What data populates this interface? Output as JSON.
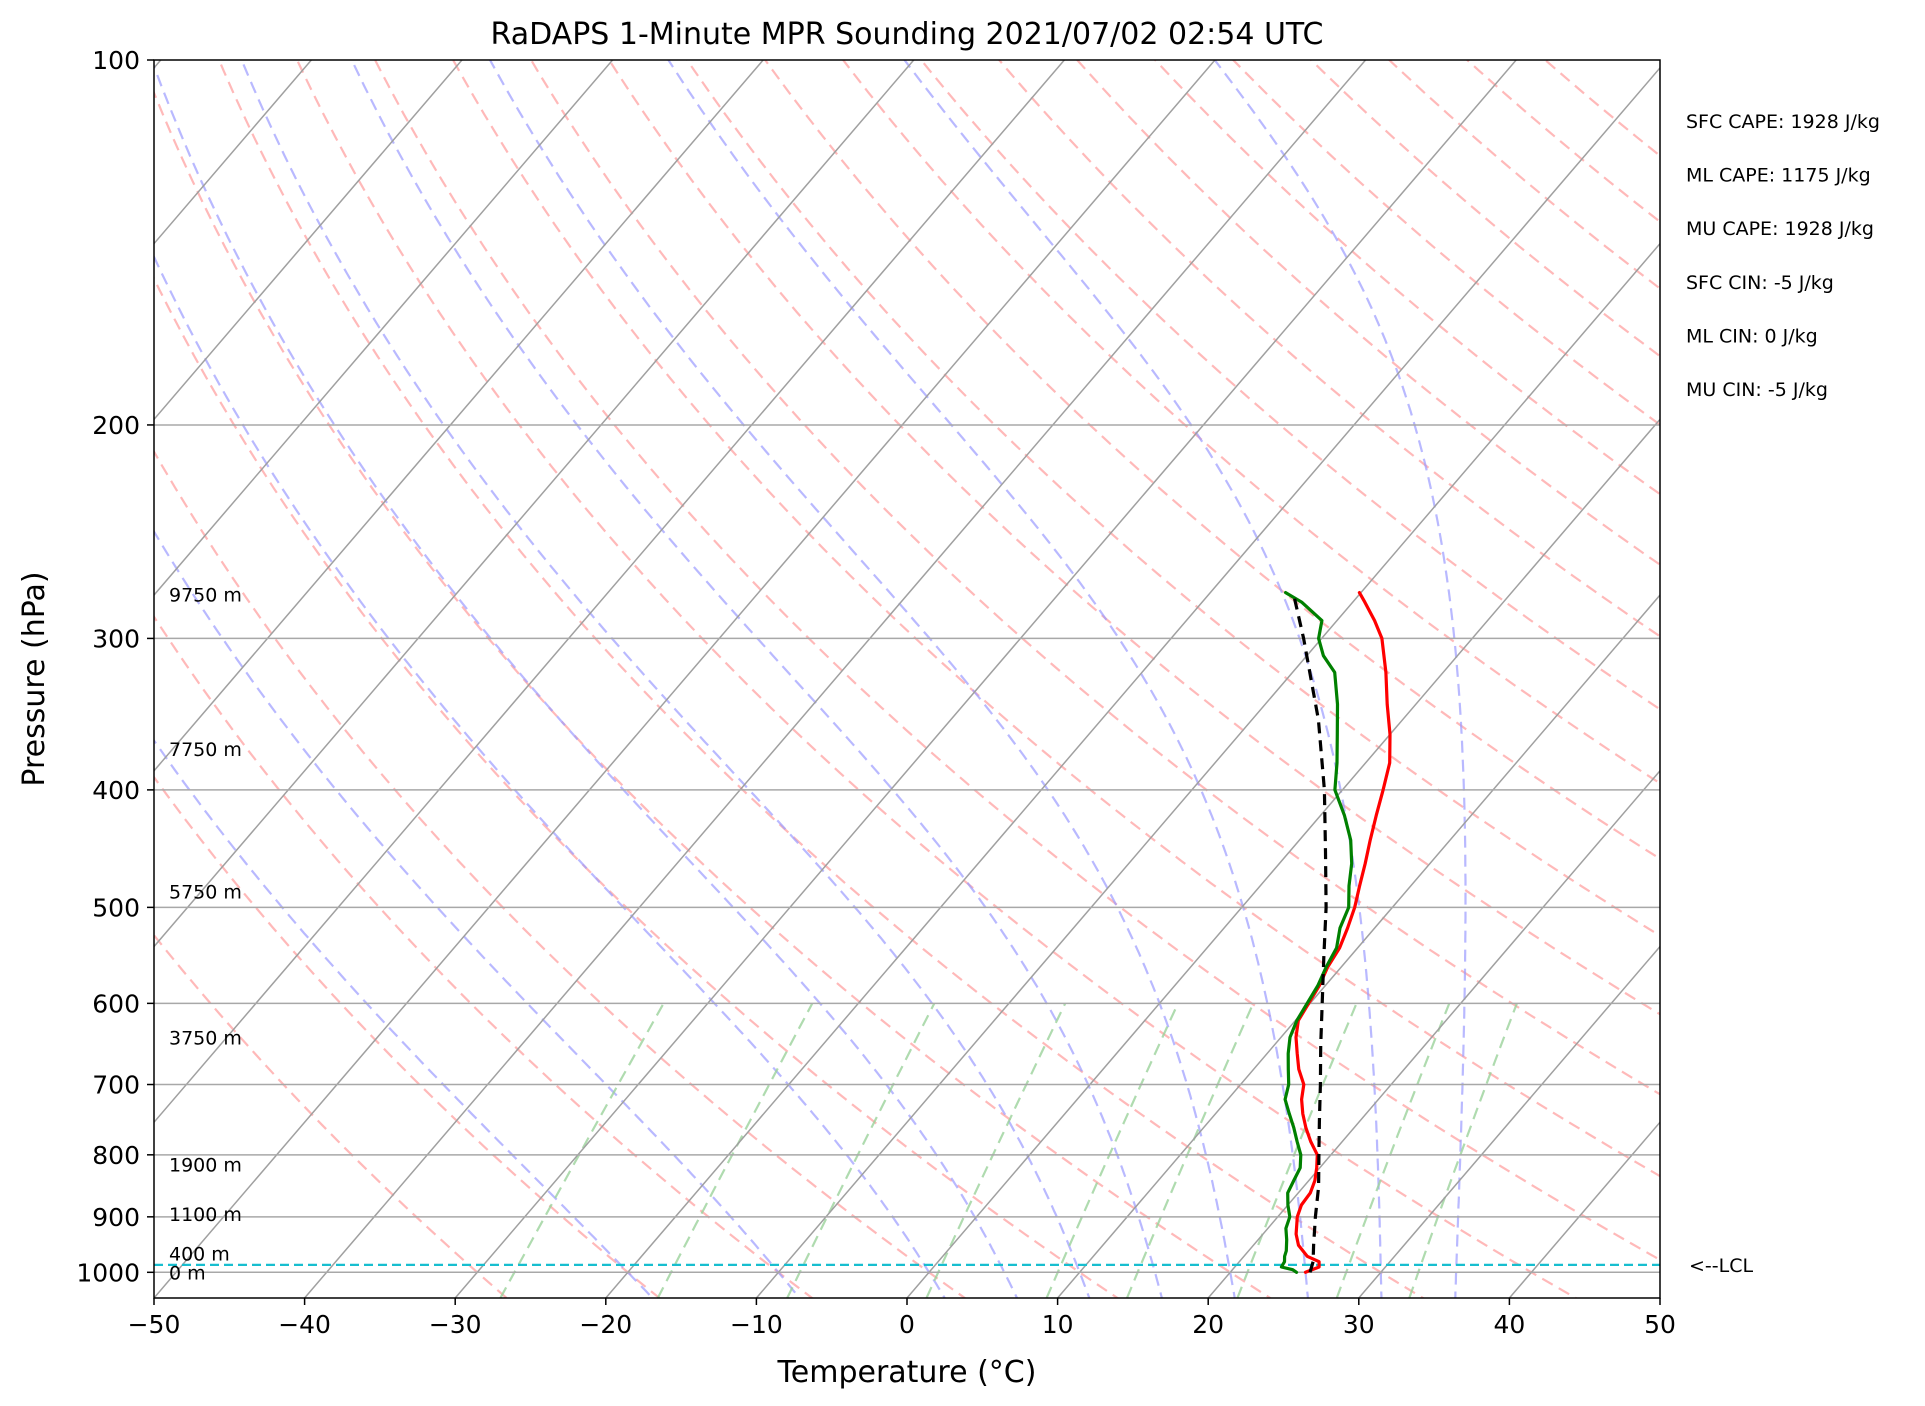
{
  "chart_data": {
    "type": "line",
    "title": "RaDAPS 1-Minute MPR Sounding 2021/07/02 02:54 UTC",
    "xlabel": "Temperature (°C)",
    "ylabel": "Pressure (hPa)",
    "xlim": [
      -50,
      50
    ],
    "ylim": [
      1050,
      100
    ],
    "y_scale": "log",
    "skew": "skew-T log-P",
    "x_ticks": [
      "−50",
      "−40",
      "−30",
      "−20",
      "−10",
      "0",
      "10",
      "20",
      "30",
      "40",
      "50"
    ],
    "x_tick_values": [
      -50,
      -40,
      -30,
      -20,
      -10,
      0,
      10,
      20,
      30,
      40,
      50
    ],
    "y_ticks": [
      "100",
      "200",
      "300",
      "400",
      "500",
      "600",
      "700",
      "800",
      "900",
      "1000"
    ],
    "y_tick_values": [
      100,
      200,
      300,
      400,
      500,
      600,
      700,
      800,
      900,
      1000
    ],
    "grid": true,
    "series": [
      {
        "kind": "temperature",
        "color": "#ff0000",
        "points": [
          [
            1000,
            25.0
          ],
          [
            990,
            25.6
          ],
          [
            980,
            25.3
          ],
          [
            970,
            24.2
          ],
          [
            950,
            23.0
          ],
          [
            930,
            22.2
          ],
          [
            900,
            21.3
          ],
          [
            880,
            20.9
          ],
          [
            860,
            20.8
          ],
          [
            840,
            20.4
          ],
          [
            820,
            19.8
          ],
          [
            800,
            19.1
          ],
          [
            780,
            17.9
          ],
          [
            760,
            16.8
          ],
          [
            740,
            15.8
          ],
          [
            720,
            14.9
          ],
          [
            700,
            14.2
          ],
          [
            680,
            13.0
          ],
          [
            660,
            12.0
          ],
          [
            640,
            11.0
          ],
          [
            620,
            10.2
          ],
          [
            600,
            9.9
          ],
          [
            580,
            9.6
          ],
          [
            560,
            9.1
          ],
          [
            540,
            8.8
          ],
          [
            520,
            8.2
          ],
          [
            500,
            7.5
          ],
          [
            480,
            6.6
          ],
          [
            460,
            5.7
          ],
          [
            440,
            4.7
          ],
          [
            420,
            3.7
          ],
          [
            400,
            2.7
          ],
          [
            380,
            1.6
          ],
          [
            360,
            0.0
          ],
          [
            340,
            -1.9
          ],
          [
            320,
            -3.8
          ],
          [
            300,
            -6.0
          ],
          [
            290,
            -7.5
          ],
          [
            280,
            -9.2
          ],
          [
            275,
            -10.1
          ]
        ]
      },
      {
        "kind": "dewpoint",
        "color": "#008000",
        "points": [
          [
            1000,
            24.4
          ],
          [
            995,
            24.0
          ],
          [
            990,
            23.1
          ],
          [
            980,
            23.0
          ],
          [
            970,
            22.7
          ],
          [
            960,
            22.5
          ],
          [
            940,
            21.9
          ],
          [
            920,
            21.2
          ],
          [
            900,
            20.8
          ],
          [
            880,
            20.0
          ],
          [
            860,
            19.3
          ],
          [
            840,
            19.0
          ],
          [
            820,
            18.7
          ],
          [
            800,
            18.0
          ],
          [
            780,
            17.0
          ],
          [
            760,
            16.0
          ],
          [
            740,
            14.9
          ],
          [
            720,
            13.8
          ],
          [
            700,
            13.2
          ],
          [
            680,
            12.3
          ],
          [
            660,
            11.4
          ],
          [
            640,
            10.6
          ],
          [
            620,
            10.1
          ],
          [
            600,
            9.8
          ],
          [
            580,
            9.5
          ],
          [
            560,
            9.0
          ],
          [
            540,
            8.6
          ],
          [
            520,
            7.7
          ],
          [
            500,
            7.1
          ],
          [
            480,
            5.9
          ],
          [
            460,
            4.8
          ],
          [
            440,
            3.4
          ],
          [
            420,
            1.6
          ],
          [
            400,
            -0.5
          ],
          [
            380,
            -1.9
          ],
          [
            360,
            -3.5
          ],
          [
            340,
            -5.2
          ],
          [
            320,
            -7.2
          ],
          [
            310,
            -8.9
          ],
          [
            300,
            -10.2
          ],
          [
            290,
            -11.0
          ],
          [
            280,
            -13.4
          ],
          [
            275,
            -15.0
          ]
        ]
      },
      {
        "kind": "parcel",
        "color": "#000000",
        "style": "dashed",
        "points": [
          [
            1000,
            25.3
          ],
          [
            980,
            24.9
          ],
          [
            950,
            24.0
          ],
          [
            900,
            22.5
          ],
          [
            850,
            21.0
          ],
          [
            800,
            19.2
          ],
          [
            750,
            17.3
          ],
          [
            700,
            15.3
          ],
          [
            650,
            13.1
          ],
          [
            600,
            10.8
          ],
          [
            550,
            8.3
          ],
          [
            500,
            5.6
          ],
          [
            450,
            2.4
          ],
          [
            400,
            -1.2
          ],
          [
            350,
            -5.6
          ],
          [
            300,
            -11.2
          ],
          [
            275,
            -14.5
          ]
        ]
      }
    ],
    "lcl": {
      "pressure": 986,
      "label": "<--LCL"
    },
    "height_labels": [
      {
        "text": "9750 m",
        "pressure": 276
      },
      {
        "text": "7750 m",
        "pressure": 370
      },
      {
        "text": "5750 m",
        "pressure": 485
      },
      {
        "text": "3750 m",
        "pressure": 640
      },
      {
        "text": "1900 m",
        "pressure": 815
      },
      {
        "text": "1100 m",
        "pressure": 895
      },
      {
        "text": "400 m",
        "pressure": 965
      },
      {
        "text": "0 m",
        "pressure": 1000
      }
    ],
    "stats": [
      "SFC CAPE: 1928 J/kg",
      "ML CAPE: 1175 J/kg",
      "MU CAPE: 1928 J/kg",
      "SFC CIN: -5 J/kg",
      "ML CIN: 0 J/kg",
      "MU CIN: -5 J/kg"
    ],
    "background_lines": {
      "isotherms": {
        "color": "#a0a0a0",
        "from": -120,
        "to": 50,
        "step": 10
      },
      "dry_adiabats": {
        "color": "#ff9b9b",
        "from_theta_c": -30,
        "to_theta_c": 200,
        "step": 10
      },
      "moist_adiabats": {
        "color": "#9b9bff",
        "start_temps_c": [
          -20,
          -10,
          0,
          5,
          10,
          15,
          20,
          25,
          30,
          35
        ]
      },
      "mixing_ratio": {
        "color": "#9bd29b",
        "values_gkg": [
          0.4,
          1,
          2,
          4,
          7,
          10,
          16,
          24,
          32
        ]
      },
      "lcl_line_color": "#17becf"
    }
  }
}
